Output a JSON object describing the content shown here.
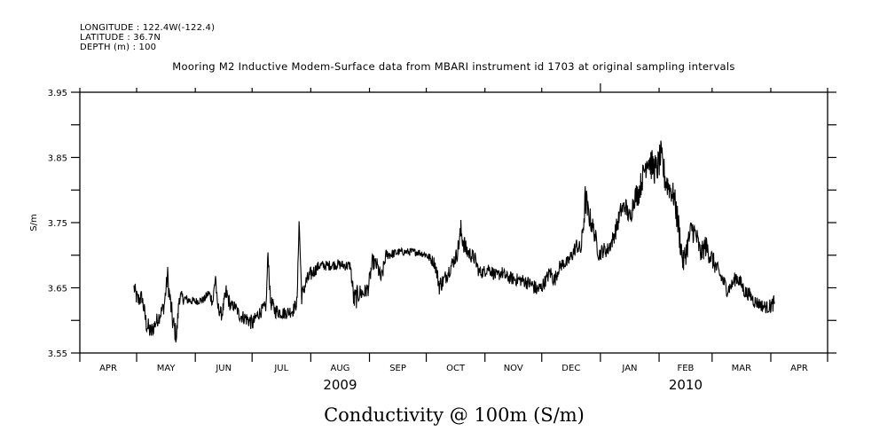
{
  "header": {
    "longitude": "LONGITUDE : 122.4W(-122.4)",
    "latitude": "LATITUDE : 36.7N",
    "depth": "DEPTH (m) : 100"
  },
  "chart_data": {
    "type": "line",
    "title": "Mooring M2 Inductive Modem-Surface data from MBARI instrument id 1703 at original sampling intervals",
    "xlabel": "Conductivity @ 100m (S/m)",
    "ylabel": "S/m",
    "x_units": "days since 2009-04-01",
    "xlim": [
      0,
      395
    ],
    "ylim": [
      3.55,
      3.95
    ],
    "grid": false,
    "y_ticks": [
      3.55,
      3.6,
      3.65,
      3.7,
      3.75,
      3.8,
      3.85,
      3.9,
      3.95
    ],
    "y_tick_labels": [
      {
        "value": 3.55,
        "label": "3.55"
      },
      {
        "value": 3.65,
        "label": "3.65"
      },
      {
        "value": 3.75,
        "label": "3.75"
      },
      {
        "value": 3.85,
        "label": "3.85"
      },
      {
        "value": 3.95,
        "label": "3.95"
      }
    ],
    "x_month_ticks": [
      0,
      30,
      61,
      91,
      122,
      153,
      183,
      214,
      244,
      275,
      306,
      334,
      365,
      395
    ],
    "x_month_labels": [
      {
        "day": 15,
        "label": "APR"
      },
      {
        "day": 45.5,
        "label": "MAY"
      },
      {
        "day": 76,
        "label": "JUN"
      },
      {
        "day": 106.5,
        "label": "JUL"
      },
      {
        "day": 137.5,
        "label": "AUG"
      },
      {
        "day": 168,
        "label": "SEP"
      },
      {
        "day": 198.5,
        "label": "OCT"
      },
      {
        "day": 229,
        "label": "NOV"
      },
      {
        "day": 259.5,
        "label": "DEC"
      },
      {
        "day": 290.5,
        "label": "JAN"
      },
      {
        "day": 320,
        "label": "FEB"
      },
      {
        "day": 349.5,
        "label": "MAR"
      },
      {
        "day": 380,
        "label": "APR"
      }
    ],
    "x_year_labels": [
      {
        "day": 137.5,
        "label": "2009"
      },
      {
        "day": 320,
        "label": "2010"
      }
    ],
    "year_boundary_day": 275,
    "series": [
      {
        "name": "Conductivity @ 100m",
        "points": [
          [
            28.6,
            3.65,
            0.012
          ],
          [
            30.5,
            3.63,
            0.015
          ],
          [
            32.8,
            3.636,
            0.012
          ],
          [
            35.1,
            3.595,
            0.015
          ],
          [
            37.5,
            3.581,
            0.015
          ],
          [
            39.8,
            3.595,
            0.012
          ],
          [
            42.2,
            3.608,
            0.012
          ],
          [
            44.5,
            3.622,
            0.012
          ],
          [
            46.4,
            3.67,
            0.015
          ],
          [
            46.9,
            3.65,
            0.015
          ],
          [
            49.2,
            3.595,
            0.02
          ],
          [
            51.1,
            3.575,
            0.015
          ],
          [
            52.5,
            3.636,
            0.012
          ],
          [
            56.2,
            3.632,
            0.008
          ],
          [
            60.9,
            3.629,
            0.006
          ],
          [
            65.6,
            3.632,
            0.006
          ],
          [
            68.0,
            3.642,
            0.008
          ],
          [
            70.3,
            3.629,
            0.01
          ],
          [
            71.7,
            3.67,
            0.015
          ],
          [
            72.6,
            3.622,
            0.01
          ],
          [
            75.0,
            3.608,
            0.01
          ],
          [
            77.3,
            3.642,
            0.015
          ],
          [
            79.7,
            3.622,
            0.01
          ],
          [
            82.0,
            3.622,
            0.008
          ],
          [
            84.3,
            3.608,
            0.01
          ],
          [
            89.0,
            3.601,
            0.012
          ],
          [
            91.4,
            3.595,
            0.012
          ],
          [
            93.7,
            3.608,
            0.01
          ],
          [
            98.4,
            3.622,
            0.01
          ],
          [
            99.4,
            3.705,
            0.01
          ],
          [
            100.7,
            3.629,
            0.012
          ],
          [
            103.1,
            3.615,
            0.012
          ],
          [
            107.8,
            3.611,
            0.01
          ],
          [
            112.5,
            3.615,
            0.01
          ],
          [
            114.8,
            3.629,
            0.01
          ],
          [
            115.8,
            3.755,
            0.01
          ],
          [
            117.2,
            3.636,
            0.012
          ],
          [
            119.5,
            3.659,
            0.012
          ],
          [
            121.8,
            3.67,
            0.012
          ],
          [
            124.2,
            3.677,
            0.01
          ],
          [
            126.5,
            3.684,
            0.008
          ],
          [
            131.2,
            3.684,
            0.008
          ],
          [
            135.9,
            3.686,
            0.008
          ],
          [
            140.6,
            3.684,
            0.008
          ],
          [
            142.9,
            3.684,
            0.008
          ],
          [
            144.8,
            3.63,
            0.02
          ],
          [
            147.6,
            3.642,
            0.015
          ],
          [
            150.0,
            3.642,
            0.012
          ],
          [
            152.3,
            3.649,
            0.012
          ],
          [
            154.6,
            3.69,
            0.012
          ],
          [
            157.0,
            3.684,
            0.012
          ],
          [
            159.3,
            3.662,
            0.015
          ],
          [
            161.7,
            3.701,
            0.008
          ],
          [
            164.0,
            3.701,
            0.008
          ],
          [
            168.7,
            3.705,
            0.006
          ],
          [
            173.4,
            3.705,
            0.006
          ],
          [
            178.1,
            3.705,
            0.006
          ],
          [
            182.8,
            3.701,
            0.006
          ],
          [
            187.5,
            3.688,
            0.01
          ],
          [
            189.9,
            3.654,
            0.015
          ],
          [
            192.2,
            3.661,
            0.012
          ],
          [
            194.5,
            3.674,
            0.012
          ],
          [
            196.9,
            3.688,
            0.012
          ],
          [
            199.2,
            3.701,
            0.012
          ],
          [
            201.3,
            3.736,
            0.02
          ],
          [
            203.9,
            3.708,
            0.015
          ],
          [
            206.3,
            3.701,
            0.012
          ],
          [
            208.6,
            3.695,
            0.012
          ],
          [
            210.9,
            3.674,
            0.01
          ],
          [
            213.3,
            3.674,
            0.01
          ],
          [
            215.6,
            3.681,
            0.01
          ],
          [
            218.0,
            3.674,
            0.01
          ],
          [
            220.3,
            3.667,
            0.01
          ],
          [
            222.7,
            3.674,
            0.01
          ],
          [
            225.0,
            3.667,
            0.01
          ],
          [
            229.7,
            3.663,
            0.01
          ],
          [
            234.4,
            3.661,
            0.01
          ],
          [
            239.0,
            3.654,
            0.012
          ],
          [
            241.4,
            3.647,
            0.012
          ],
          [
            243.7,
            3.65,
            0.012
          ],
          [
            246.0,
            3.661,
            0.01
          ],
          [
            248.4,
            3.674,
            0.012
          ],
          [
            250.7,
            3.661,
            0.012
          ],
          [
            253.1,
            3.681,
            0.01
          ],
          [
            255.4,
            3.688,
            0.01
          ],
          [
            257.7,
            3.688,
            0.01
          ],
          [
            260.1,
            3.701,
            0.012
          ],
          [
            262.4,
            3.715,
            0.012
          ],
          [
            264.8,
            3.708,
            0.012
          ],
          [
            267.2,
            3.789,
            0.03
          ],
          [
            268.1,
            3.769,
            0.02
          ],
          [
            271.8,
            3.735,
            0.015
          ],
          [
            274.2,
            3.701,
            0.012
          ],
          [
            276.5,
            3.708,
            0.012
          ],
          [
            278.8,
            3.708,
            0.012
          ],
          [
            281.2,
            3.722,
            0.012
          ],
          [
            283.5,
            3.742,
            0.015
          ],
          [
            285.9,
            3.769,
            0.015
          ],
          [
            288.2,
            3.776,
            0.015
          ],
          [
            290.5,
            3.755,
            0.015
          ],
          [
            292.9,
            3.789,
            0.018
          ],
          [
            295.2,
            3.796,
            0.02
          ],
          [
            297.6,
            3.823,
            0.02
          ],
          [
            299.9,
            3.851,
            0.025
          ],
          [
            302.3,
            3.837,
            0.025
          ],
          [
            304.6,
            3.83,
            0.025
          ],
          [
            306.9,
            3.851,
            0.025
          ],
          [
            309.3,
            3.816,
            0.025
          ],
          [
            311.6,
            3.803,
            0.02
          ],
          [
            314.0,
            3.789,
            0.02
          ],
          [
            316.3,
            3.742,
            0.025
          ],
          [
            318.7,
            3.688,
            0.02
          ],
          [
            321.0,
            3.715,
            0.02
          ],
          [
            323.3,
            3.742,
            0.02
          ],
          [
            325.7,
            3.728,
            0.02
          ],
          [
            328.0,
            3.701,
            0.015
          ],
          [
            330.4,
            3.715,
            0.018
          ],
          [
            335.0,
            3.688,
            0.015
          ],
          [
            337.4,
            3.674,
            0.012
          ],
          [
            339.7,
            3.661,
            0.012
          ],
          [
            342.1,
            3.647,
            0.012
          ],
          [
            344.4,
            3.654,
            0.01
          ],
          [
            346.8,
            3.667,
            0.012
          ],
          [
            349.1,
            3.657,
            0.012
          ],
          [
            351.5,
            3.643,
            0.012
          ],
          [
            353.8,
            3.64,
            0.01
          ],
          [
            356.1,
            3.63,
            0.01
          ],
          [
            358.5,
            3.626,
            0.01
          ],
          [
            360.8,
            3.622,
            0.01
          ],
          [
            363.2,
            3.62,
            0.01
          ],
          [
            365.5,
            3.623,
            0.012
          ],
          [
            367.0,
            3.628,
            0.012
          ]
        ]
      }
    ]
  }
}
